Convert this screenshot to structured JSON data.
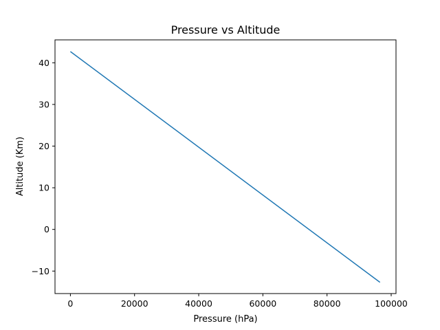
{
  "chart_data": {
    "type": "line",
    "title": "Pressure vs Altitude",
    "xlabel": "Pressure (hPa)",
    "ylabel": "Altitude (Km)",
    "xlim": [
      -4800,
      101500
    ],
    "ylim": [
      -15.4,
      45.5
    ],
    "xticks": [
      0,
      20000,
      40000,
      60000,
      80000,
      100000
    ],
    "xtick_labels": [
      "0",
      "20000",
      "40000",
      "60000",
      "80000",
      "100000"
    ],
    "yticks": [
      -10,
      0,
      10,
      20,
      30,
      40
    ],
    "ytick_labels": [
      "−10",
      "0",
      "10",
      "20",
      "30",
      "40"
    ],
    "grid": false,
    "series": [
      {
        "color": "#1f77b4",
        "x": [
          0,
          96500
        ],
        "y": [
          42.7,
          -12.7
        ]
      }
    ]
  }
}
